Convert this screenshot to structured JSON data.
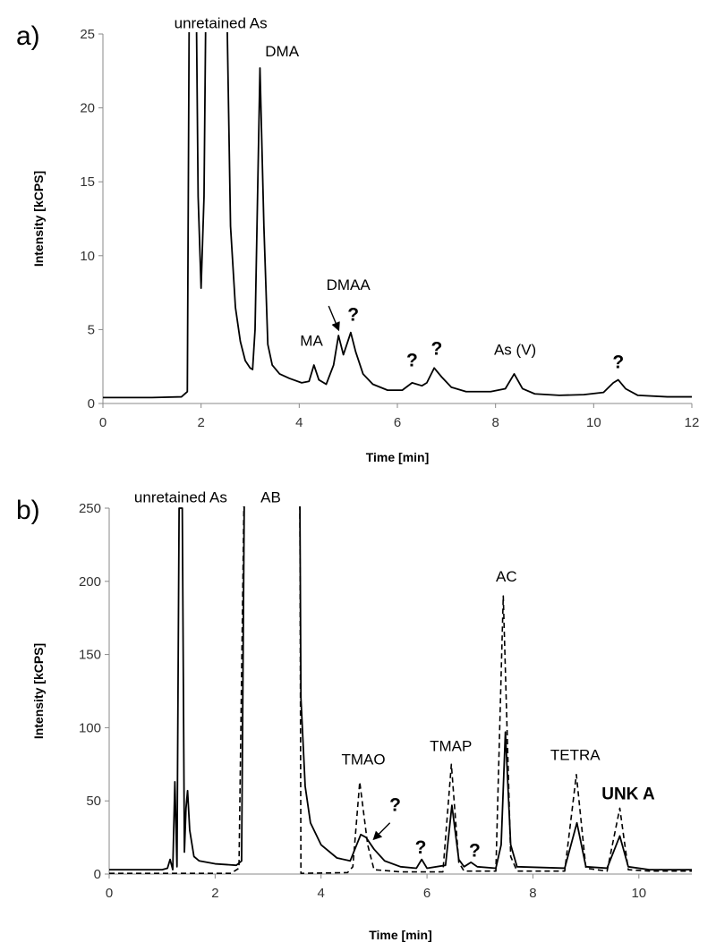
{
  "chart_data": [
    {
      "type": "line",
      "panel_label": "a)",
      "xlabel": "Time [min]",
      "ylabel": "Intensity [kCPS]",
      "xlim": [
        0,
        12
      ],
      "ylim": [
        0,
        25
      ],
      "xticks": [
        0,
        2,
        4,
        6,
        8,
        10,
        12
      ],
      "yticks": [
        0,
        5,
        10,
        15,
        20,
        25
      ],
      "grid": false,
      "series": [
        {
          "style": "solid",
          "color": "#000000",
          "points": [
            [
              0,
              0.4
            ],
            [
              1.0,
              0.4
            ],
            [
              1.6,
              0.45
            ],
            [
              1.72,
              0.8
            ],
            [
              1.76,
              28
            ],
            [
              1.9,
              28
            ],
            [
              1.94,
              14
            ],
            [
              2.0,
              7.8
            ],
            [
              2.06,
              14
            ],
            [
              2.1,
              28
            ],
            [
              2.52,
              28
            ],
            [
              2.6,
              12
            ],
            [
              2.7,
              6.5
            ],
            [
              2.8,
              4.2
            ],
            [
              2.9,
              2.9
            ],
            [
              3.0,
              2.4
            ],
            [
              3.05,
              2.3
            ],
            [
              3.1,
              5
            ],
            [
              3.2,
              22.7
            ],
            [
              3.28,
              12
            ],
            [
              3.36,
              4
            ],
            [
              3.45,
              2.6
            ],
            [
              3.6,
              2.0
            ],
            [
              3.8,
              1.7
            ],
            [
              4.05,
              1.4
            ],
            [
              4.2,
              1.5
            ],
            [
              4.3,
              2.6
            ],
            [
              4.4,
              1.6
            ],
            [
              4.55,
              1.3
            ],
            [
              4.7,
              2.6
            ],
            [
              4.8,
              4.6
            ],
            [
              4.9,
              3.3
            ],
            [
              5.0,
              4.3
            ],
            [
              5.05,
              4.8
            ],
            [
              5.15,
              3.5
            ],
            [
              5.3,
              2.0
            ],
            [
              5.5,
              1.3
            ],
            [
              5.8,
              0.9
            ],
            [
              6.1,
              0.9
            ],
            [
              6.3,
              1.4
            ],
            [
              6.5,
              1.2
            ],
            [
              6.6,
              1.4
            ],
            [
              6.75,
              2.4
            ],
            [
              6.9,
              1.8
            ],
            [
              7.1,
              1.1
            ],
            [
              7.4,
              0.8
            ],
            [
              7.9,
              0.8
            ],
            [
              8.2,
              1.0
            ],
            [
              8.38,
              2.0
            ],
            [
              8.55,
              1.0
            ],
            [
              8.8,
              0.65
            ],
            [
              9.3,
              0.55
            ],
            [
              9.8,
              0.6
            ],
            [
              10.2,
              0.75
            ],
            [
              10.4,
              1.4
            ],
            [
              10.5,
              1.6
            ],
            [
              10.65,
              1.0
            ],
            [
              10.9,
              0.55
            ],
            [
              11.5,
              0.45
            ],
            [
              12,
              0.45
            ]
          ]
        }
      ],
      "annotations": [
        {
          "text": "unretained As",
          "x": 2.4,
          "y": 25.4,
          "style": "normal"
        },
        {
          "text": "DMA",
          "x": 3.65,
          "y": 23.5,
          "style": "normal"
        },
        {
          "text": "DMAA",
          "x": 5.0,
          "y": 7.7,
          "style": "normal"
        },
        {
          "text": "MA",
          "x": 4.25,
          "y": 3.9,
          "style": "normal"
        },
        {
          "text": "?",
          "x": 5.1,
          "y": 5.6,
          "style": "question"
        },
        {
          "text": "?",
          "x": 6.3,
          "y": 2.5,
          "style": "question"
        },
        {
          "text": "?",
          "x": 6.8,
          "y": 3.3,
          "style": "question"
        },
        {
          "text": "As (V)",
          "x": 8.4,
          "y": 3.3,
          "style": "normal"
        },
        {
          "text": "?",
          "x": 10.5,
          "y": 2.4,
          "style": "question"
        }
      ],
      "arrows": [
        {
          "from": [
            4.6,
            6.6
          ],
          "to": [
            4.8,
            5.0
          ]
        }
      ]
    },
    {
      "type": "line",
      "panel_label": "b)",
      "xlabel": "Time [min]",
      "ylabel": "Intensity [kCPS]",
      "xlim": [
        0,
        11
      ],
      "ylim": [
        0,
        250
      ],
      "xticks": [
        0,
        2,
        4,
        6,
        8,
        10
      ],
      "yticks": [
        0,
        50,
        100,
        150,
        200,
        250
      ],
      "grid": false,
      "series": [
        {
          "style": "solid",
          "color": "#000000",
          "points": [
            [
              0,
              3
            ],
            [
              1.0,
              3
            ],
            [
              1.1,
              4
            ],
            [
              1.15,
              10
            ],
            [
              1.2,
              3
            ],
            [
              1.24,
              63
            ],
            [
              1.28,
              5
            ],
            [
              1.32,
              250
            ],
            [
              1.38,
              250
            ],
            [
              1.42,
              15
            ],
            [
              1.45,
              45
            ],
            [
              1.48,
              57
            ],
            [
              1.52,
              30
            ],
            [
              1.6,
              12
            ],
            [
              1.7,
              9
            ],
            [
              2.0,
              7
            ],
            [
              2.4,
              6
            ],
            [
              2.5,
              9
            ],
            [
              2.55,
              255
            ],
            [
              3.6,
              255
            ],
            [
              3.62,
              120
            ],
            [
              3.7,
              60
            ],
            [
              3.8,
              35
            ],
            [
              4.0,
              20
            ],
            [
              4.3,
              11
            ],
            [
              4.55,
              9
            ],
            [
              4.65,
              18
            ],
            [
              4.75,
              27
            ],
            [
              4.85,
              25
            ],
            [
              5.0,
              17
            ],
            [
              5.2,
              9
            ],
            [
              5.5,
              5
            ],
            [
              5.8,
              4
            ],
            [
              5.9,
              10
            ],
            [
              6.0,
              4
            ],
            [
              6.35,
              6
            ],
            [
              6.47,
              47
            ],
            [
              6.6,
              10
            ],
            [
              6.7,
              5
            ],
            [
              6.83,
              8
            ],
            [
              6.95,
              5
            ],
            [
              7.3,
              4
            ],
            [
              7.4,
              20
            ],
            [
              7.48,
              97
            ],
            [
              7.58,
              20
            ],
            [
              7.7,
              5
            ],
            [
              8.6,
              4
            ],
            [
              8.83,
              35
            ],
            [
              9.0,
              5
            ],
            [
              9.4,
              4
            ],
            [
              9.64,
              26
            ],
            [
              9.8,
              5
            ],
            [
              10.2,
              3
            ],
            [
              11,
              3
            ]
          ]
        },
        {
          "style": "dashed",
          "color": "#000000",
          "points": [
            [
              0,
              0.5
            ],
            [
              2.3,
              0.5
            ],
            [
              2.45,
              4
            ],
            [
              2.55,
              270
            ],
            [
              2.6,
              255
            ],
            [
              3.6,
              255
            ],
            [
              3.62,
              0.5
            ],
            [
              4.5,
              1
            ],
            [
              4.6,
              5
            ],
            [
              4.73,
              63
            ],
            [
              4.88,
              20
            ],
            [
              5.0,
              3
            ],
            [
              5.5,
              1.5
            ],
            [
              6.3,
              1.5
            ],
            [
              6.46,
              75
            ],
            [
              6.6,
              8
            ],
            [
              6.7,
              2
            ],
            [
              7.3,
              2
            ],
            [
              7.44,
              190
            ],
            [
              7.58,
              12
            ],
            [
              7.7,
              2
            ],
            [
              8.6,
              2
            ],
            [
              8.82,
              68
            ],
            [
              9.0,
              4
            ],
            [
              9.4,
              2
            ],
            [
              9.64,
              45
            ],
            [
              9.8,
              3
            ],
            [
              10.2,
              2
            ],
            [
              11,
              2
            ]
          ]
        }
      ],
      "annotations": [
        {
          "text": "unretained As",
          "x": 1.35,
          "y": 254,
          "style": "normal"
        },
        {
          "text": "AB",
          "x": 3.05,
          "y": 254,
          "style": "normal"
        },
        {
          "text": "TMAO",
          "x": 4.8,
          "y": 75,
          "style": "normal"
        },
        {
          "text": "?",
          "x": 5.4,
          "y": 43,
          "style": "question"
        },
        {
          "text": "?",
          "x": 5.88,
          "y": 14,
          "style": "question"
        },
        {
          "text": "TMAP",
          "x": 6.45,
          "y": 84,
          "style": "normal"
        },
        {
          "text": "?",
          "x": 6.9,
          "y": 12,
          "style": "question"
        },
        {
          "text": "AC",
          "x": 7.5,
          "y": 200,
          "style": "normal"
        },
        {
          "text": "TETRA",
          "x": 8.8,
          "y": 78,
          "style": "normal"
        },
        {
          "text": "UNK A",
          "x": 9.8,
          "y": 51,
          "style": "bold"
        }
      ],
      "arrows": [
        {
          "from": [
            5.3,
            35
          ],
          "to": [
            5.0,
            24
          ]
        }
      ]
    }
  ]
}
